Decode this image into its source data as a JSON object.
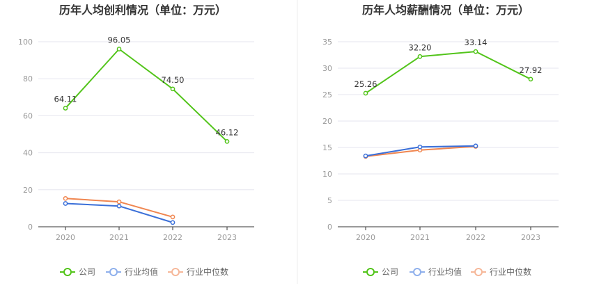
{
  "chart_data": [
    {
      "type": "line",
      "title": "历年人均创利情况（单位：万元）",
      "categories": [
        "2020",
        "2021",
        "2022",
        "2023"
      ],
      "ylim": [
        0,
        100
      ],
      "yticks": [
        0,
        20,
        40,
        60,
        80,
        100
      ],
      "series": [
        {
          "name": "公司",
          "color": "#52c41a",
          "values": [
            64.11,
            96.05,
            74.5,
            46.12
          ],
          "labels": [
            "64.11",
            "96.05",
            "74.50",
            "46.12"
          ]
        },
        {
          "name": "行业均值",
          "color": "#3a6fd8",
          "values": [
            12.6,
            11.2,
            2.3,
            null
          ]
        },
        {
          "name": "行业中位数",
          "color": "#f08650",
          "values": [
            15.3,
            13.5,
            5.3,
            null
          ]
        }
      ]
    },
    {
      "type": "line",
      "title": "历年人均薪酬情况（单位：万元）",
      "categories": [
        "2020",
        "2021",
        "2022",
        "2023"
      ],
      "ylim": [
        0,
        35
      ],
      "yticks": [
        0,
        5,
        10,
        15,
        20,
        25,
        30,
        35
      ],
      "series": [
        {
          "name": "公司",
          "color": "#52c41a",
          "values": [
            25.26,
            32.2,
            33.14,
            27.92
          ],
          "labels": [
            "25.26",
            "32.20",
            "33.14",
            "27.92"
          ]
        },
        {
          "name": "行业均值",
          "color": "#3a6fd8",
          "values": [
            13.4,
            15.1,
            15.3,
            null
          ]
        },
        {
          "name": "行业中位数",
          "color": "#f08650",
          "values": [
            13.3,
            14.5,
            15.2,
            null
          ]
        }
      ]
    }
  ],
  "legend": [
    {
      "name": "公司",
      "color": "#52c41a"
    },
    {
      "name": "行业均值",
      "color": "#8fb0ec"
    },
    {
      "name": "行业中位数",
      "color": "#f6b89a"
    }
  ],
  "colors": {
    "axis": "#333333",
    "grid": "#e6e6ef",
    "divider": "#eeeeee"
  }
}
